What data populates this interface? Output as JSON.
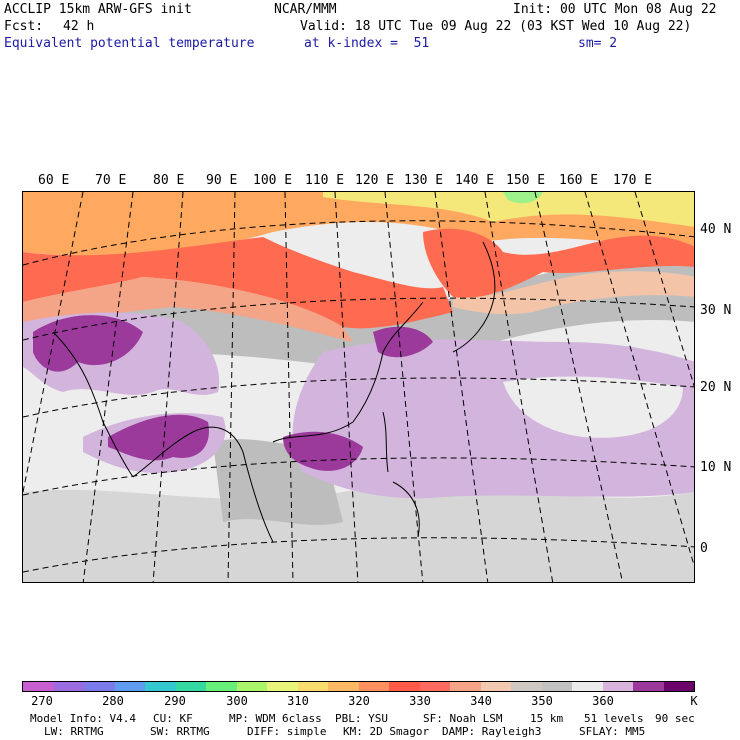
{
  "header": {
    "line1_left": "ACCLIP 15km ARW-GFS init",
    "line1_mid": "NCAR/MMM",
    "line1_right": "Init: 00 UTC Mon 08 Aug 22",
    "fcst_label": "Fcst:",
    "fcst_value": "42 h",
    "valid": "Valid: 18 UTC Tue 09 Aug 22 (03 KST Wed 10 Aug 22)",
    "field": "Equivalent potential temperature",
    "level": "at k-index =  51",
    "smoothing": "sm= 2"
  },
  "map": {
    "lon_labels": [
      "60 E",
      "70 E",
      "80 E",
      "90 E",
      "100 E",
      "110 E",
      "120 E",
      "130 E",
      "140 E",
      "150 E",
      "160 E",
      "170 E"
    ],
    "lat_labels": [
      "40 N",
      "30 N",
      "20 N",
      "10 N",
      "0"
    ],
    "colors": {
      "purple_dark": "#6b006b",
      "purple": "#9b3a9b",
      "lavender": "#d2b4dc",
      "white": "#ededed",
      "light_gray": "#d6d6d6",
      "gray": "#bdbdbd",
      "peach": "#f4c4a8",
      "salmon": "#f4a487",
      "red": "#ff6b50",
      "orange": "#ffa860",
      "yellow": "#f5e87a",
      "green": "#9ef08a"
    }
  },
  "colorbar": {
    "colors": [
      "#c85fd0",
      "#9b6ce0",
      "#7b7bea",
      "#5f9bef",
      "#35c8cf",
      "#35d8a0",
      "#68ef7a",
      "#aaf56a",
      "#e8f57a",
      "#f8dc6e",
      "#ffb964",
      "#ff9160",
      "#ff5a48",
      "#ff6b5f",
      "#f5a487",
      "#f2c9b0",
      "#cfc7c2",
      "#c2c2c2",
      "#ebebeb",
      "#d8b4dc",
      "#9b3a9b",
      "#6b006b"
    ],
    "ticks": [
      "270",
      "280",
      "290",
      "300",
      "310",
      "320",
      "330",
      "340",
      "350",
      "360"
    ],
    "unit": "K"
  },
  "footer": {
    "line1": [
      "Model Info: V4.4",
      "CU: KF",
      "MP: WDM 6class",
      "PBL: YSU",
      "SF: Noah LSM",
      "15 km",
      "51 levels",
      "90 sec"
    ],
    "line2": [
      "LW: RRTMG",
      "SW: RRTMG",
      "DIFF: simple",
      "KM: 2D Smagor",
      "DAMP: Rayleigh3",
      "SFLAY: MM5"
    ]
  }
}
